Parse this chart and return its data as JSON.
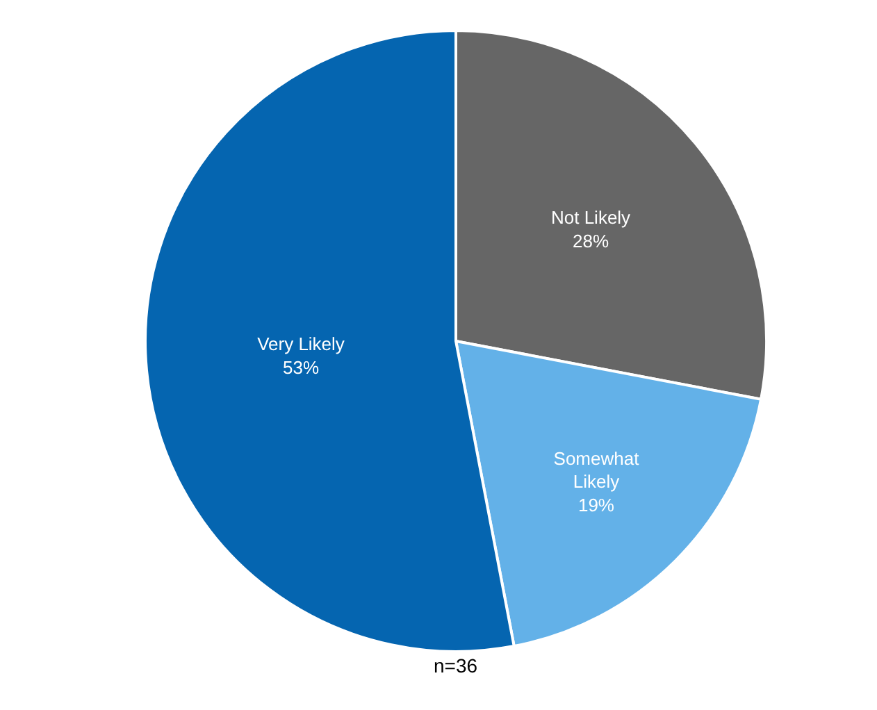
{
  "chart_data": {
    "type": "pie",
    "categories": [
      "Not Likely",
      "Somewhat Likely",
      "Very Likely"
    ],
    "values": [
      28,
      19,
      53
    ],
    "value_labels": [
      "28%",
      "19%",
      "53%"
    ],
    "colors": [
      "#666666",
      "#63b1e8",
      "#0565b0"
    ],
    "legend": false,
    "annotations": [
      "n=36"
    ]
  }
}
